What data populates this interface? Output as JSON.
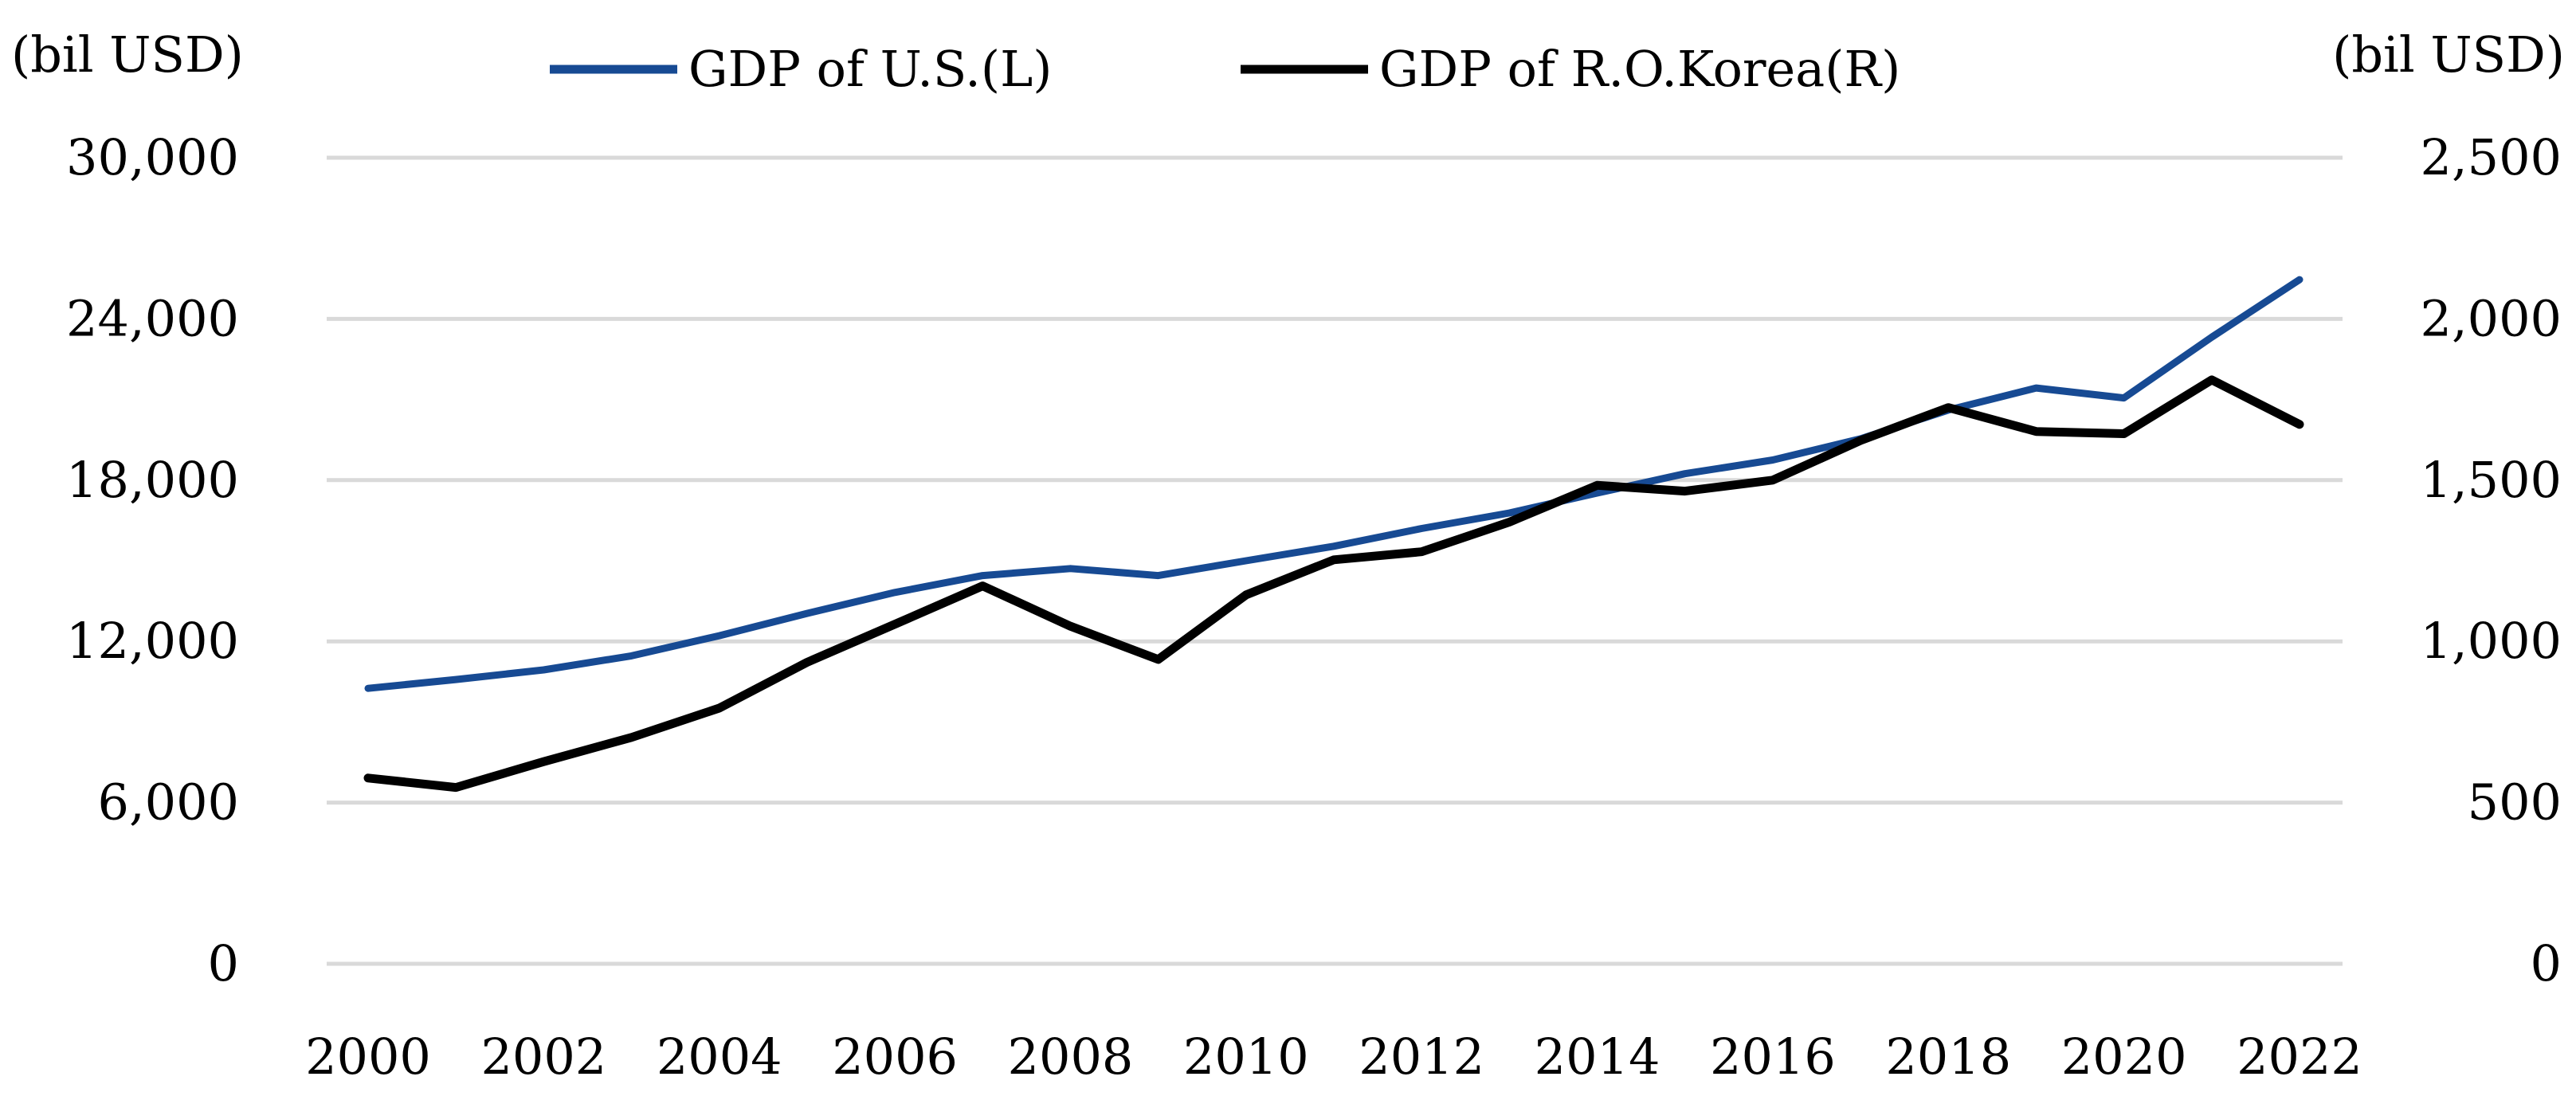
{
  "chart_data": {
    "type": "line",
    "title": "",
    "x": [
      2000,
      2001,
      2002,
      2003,
      2004,
      2005,
      2006,
      2007,
      2008,
      2009,
      2010,
      2011,
      2012,
      2013,
      2014,
      2015,
      2016,
      2017,
      2018,
      2019,
      2020,
      2021,
      2022
    ],
    "x_tick_labels": [
      "2000",
      "2002",
      "2004",
      "2006",
      "2008",
      "2010",
      "2012",
      "2014",
      "2016",
      "2018",
      "2020",
      "2022"
    ],
    "ylabel_left": "(bil USD)",
    "ylabel_right": "(bil USD)",
    "ylim_left": [
      0,
      30000
    ],
    "ylim_right": [
      0,
      2500
    ],
    "y_ticks_left": [
      "0",
      "6,000",
      "12,000",
      "18,000",
      "24,000",
      "30,000"
    ],
    "y_ticks_right": [
      "0",
      "500",
      "1,000",
      "1,500",
      "2,000",
      "2,500"
    ],
    "grid": true,
    "legend_position": "top-center",
    "series": [
      {
        "name": "GDP of U.S.(L)",
        "axis": "left",
        "color": "#174a93",
        "values": [
          10250,
          10580,
          10940,
          11460,
          12210,
          13040,
          13820,
          14450,
          14710,
          14450,
          15000,
          15540,
          16200,
          16780,
          17520,
          18240,
          18750,
          19540,
          20610,
          21430,
          21060,
          23320,
          25460
        ]
      },
      {
        "name": "GDP of R.O.Korea(R)",
        "axis": "right",
        "color": "#000000",
        "values": [
          576,
          547,
          627,
          702,
          793,
          935,
          1053,
          1172,
          1047,
          944,
          1144,
          1253,
          1278,
          1370,
          1484,
          1466,
          1500,
          1623,
          1725,
          1651,
          1644,
          1811,
          1673
        ]
      }
    ]
  }
}
